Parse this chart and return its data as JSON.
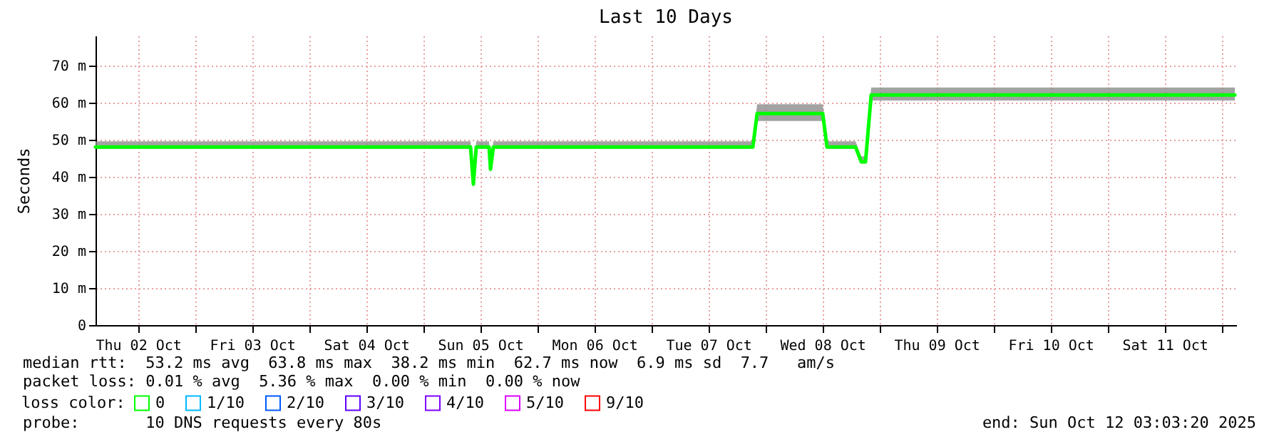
{
  "chart_data": {
    "type": "line",
    "title": "Last 10 Days",
    "ylabel": "Seconds",
    "legend_title": "loss color:",
    "legend": "bottom",
    "grid": true,
    "x": [
      "2025-10-02T03:03",
      "2025-10-05T09:57",
      "2025-10-05T10:33",
      "2025-10-05T11:09",
      "2025-10-05T13:51",
      "2025-10-05T14:09",
      "2025-10-05T14:45",
      "2025-10-07T21:21",
      "2025-10-07T22:15",
      "2025-10-08T12:03",
      "2025-10-08T12:57",
      "2025-10-08T18:57",
      "2025-10-08T20:09",
      "2025-10-08T21:03",
      "2025-10-08T22:15",
      "2025-10-12T02:45"
    ],
    "xlim": [
      "2025-10-02T03:03",
      "2025-10-12T03:03"
    ],
    "xticks": [
      {
        "value": "2025-10-02T12:00",
        "label": "Thu 02 Oct"
      },
      {
        "value": "2025-10-03T00:00",
        "label": null
      },
      {
        "value": "2025-10-03T12:00",
        "label": "Fri 03 Oct"
      },
      {
        "value": "2025-10-04T00:00",
        "label": null
      },
      {
        "value": "2025-10-04T12:00",
        "label": "Sat 04 Oct"
      },
      {
        "value": "2025-10-05T00:00",
        "label": null
      },
      {
        "value": "2025-10-05T12:00",
        "label": "Sun 05 Oct"
      },
      {
        "value": "2025-10-06T00:00",
        "label": null
      },
      {
        "value": "2025-10-06T12:00",
        "label": "Mon 06 Oct"
      },
      {
        "value": "2025-10-07T00:00",
        "label": null
      },
      {
        "value": "2025-10-07T12:00",
        "label": "Tue 07 Oct"
      },
      {
        "value": "2025-10-08T00:00",
        "label": null
      },
      {
        "value": "2025-10-08T12:00",
        "label": "Wed 08 Oct"
      },
      {
        "value": "2025-10-09T00:00",
        "label": null
      },
      {
        "value": "2025-10-09T12:00",
        "label": "Thu 09 Oct"
      },
      {
        "value": "2025-10-10T00:00",
        "label": null
      },
      {
        "value": "2025-10-10T12:00",
        "label": "Fri 10 Oct"
      },
      {
        "value": "2025-10-11T00:00",
        "label": null
      },
      {
        "value": "2025-10-11T12:00",
        "label": "Sat 11 Oct"
      },
      {
        "value": "2025-10-12T00:00",
        "label": null
      }
    ],
    "ylim": [
      0,
      78
    ],
    "yticks": [
      0,
      {
        "value": 10,
        "label": "10 m"
      },
      {
        "value": 20,
        "label": "20 m"
      },
      {
        "value": 30,
        "label": "30 m"
      },
      {
        "value": 40,
        "label": "40 m"
      },
      {
        "value": 50,
        "label": "50 m"
      },
      {
        "value": 60,
        "label": "60 m"
      },
      {
        "value": 70,
        "label": "70 m"
      }
    ],
    "series": [
      {
        "name": "0",
        "color": "#00ff00",
        "values": [
          48,
          48,
          38,
          48,
          48,
          42,
          48,
          48,
          57,
          57,
          48,
          48,
          44,
          44,
          62,
          62
        ],
        "lower": [
          47.5,
          47.5,
          37,
          47.5,
          47.5,
          41,
          47.5,
          47.5,
          55,
          55,
          47.5,
          47.5,
          43.5,
          43.5,
          60.5,
          60.5
        ],
        "upper": [
          49.5,
          49.5,
          39,
          49.5,
          49.5,
          43,
          49.5,
          49.5,
          59.5,
          59.5,
          49.5,
          49.5,
          45.5,
          45.5,
          64,
          64
        ]
      },
      {
        "name": "1/10",
        "color": "#00b8ff",
        "values": [
          null,
          null,
          null,
          null,
          null,
          null,
          null,
          null,
          null,
          null,
          null,
          null,
          null,
          null,
          null,
          null
        ]
      },
      {
        "name": "2/10",
        "color": "#0059ff",
        "values": [
          null,
          null,
          null,
          null,
          null,
          null,
          null,
          null,
          null,
          null,
          null,
          null,
          null,
          null,
          null,
          null
        ]
      },
      {
        "name": "3/10",
        "color": "#5e00ff",
        "values": [
          null,
          null,
          null,
          null,
          null,
          null,
          null,
          null,
          null,
          null,
          null,
          null,
          null,
          null,
          null,
          null
        ]
      },
      {
        "name": "4/10",
        "color": "#7e00ff",
        "values": [
          null,
          null,
          null,
          null,
          null,
          null,
          null,
          null,
          null,
          null,
          null,
          null,
          null,
          null,
          null,
          null
        ]
      },
      {
        "name": "5/10",
        "color": "#dd00ff",
        "values": [
          null,
          null,
          null,
          null,
          null,
          null,
          null,
          null,
          null,
          null,
          null,
          null,
          null,
          null,
          null,
          null
        ]
      },
      {
        "name": "9/10",
        "color": "#ff0000",
        "values": [
          null,
          null,
          null,
          null,
          null,
          null,
          null,
          null,
          null,
          null,
          null,
          null,
          null,
          null,
          null,
          null
        ]
      }
    ],
    "annotations": [
      "median rtt:  53.2 ms avg  63.8 ms max  38.2 ms min  62.7 ms now  6.9 ms sd  7.7   am/s",
      "packet loss: 0.01 % avg  5.36 % max  0.00 % min  0.00 % now",
      "probe:       10 DNS requests every 80s",
      "end: Sun Oct 12 03:03:20 2025"
    ]
  }
}
